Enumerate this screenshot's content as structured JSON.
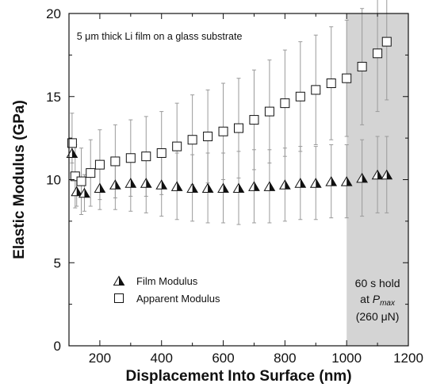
{
  "chart_data": {
    "type": "scatter",
    "xlabel": "Displacement Into Surface (nm)",
    "ylabel": "Elastic Modulus (GPa)",
    "xlim": [
      100,
      1200
    ],
    "ylim": [
      0,
      20
    ],
    "x_ticks": [
      "200",
      "400",
      "600",
      "800",
      "1000",
      "1200"
    ],
    "y_ticks": [
      "0",
      "5",
      "10",
      "15",
      "20"
    ],
    "grid": false,
    "legend_position": "bottom-left",
    "shaded_region": {
      "x_start": 1000,
      "x_end": 1200,
      "color": "#d4d4d4"
    },
    "annotations": {
      "top_note": "5 μm thick Li film on a glass substrate",
      "hold_line1": "60 s hold",
      "hold_line2_prefix": "at ",
      "hold_line2_var": "P",
      "hold_line2_sub": "max",
      "hold_line3": "(260 μN)"
    },
    "series": [
      {
        "name": "Film Modulus",
        "marker": "half-filled-triangle",
        "x": [
          110,
          125,
          150,
          200,
          250,
          300,
          350,
          400,
          450,
          500,
          550,
          600,
          650,
          700,
          750,
          800,
          850,
          900,
          950,
          1000,
          1050,
          1100,
          1130
        ],
        "y": [
          11.6,
          9.3,
          9.2,
          9.5,
          9.7,
          9.8,
          9.8,
          9.7,
          9.6,
          9.5,
          9.5,
          9.5,
          9.5,
          9.6,
          9.6,
          9.7,
          9.8,
          9.8,
          9.9,
          9.9,
          10.1,
          10.3,
          10.3
        ],
        "error": [
          0.6,
          0.9,
          1.1,
          1.3,
          1.5,
          1.7,
          1.8,
          1.9,
          2.0,
          2.0,
          2.1,
          2.1,
          2.2,
          2.2,
          2.2,
          2.2,
          2.2,
          2.2,
          2.2,
          2.2,
          2.3,
          2.3,
          2.3
        ]
      },
      {
        "name": "Apparent Modulus",
        "marker": "open-square",
        "x": [
          110,
          120,
          140,
          170,
          200,
          250,
          300,
          350,
          400,
          450,
          500,
          550,
          600,
          650,
          700,
          750,
          800,
          850,
          900,
          950,
          1000,
          1050,
          1100,
          1130
        ],
        "y": [
          12.2,
          10.2,
          9.9,
          10.4,
          10.9,
          11.1,
          11.3,
          11.4,
          11.6,
          12.0,
          12.4,
          12.6,
          12.9,
          13.1,
          13.6,
          14.1,
          14.6,
          15.0,
          15.4,
          15.8,
          16.1,
          16.8,
          17.6,
          18.3
        ],
        "error": [
          1.8,
          1.9,
          2.0,
          2.0,
          2.1,
          2.2,
          2.3,
          2.4,
          2.5,
          2.6,
          2.7,
          2.8,
          2.9,
          3.0,
          3.0,
          3.1,
          3.2,
          3.3,
          3.3,
          3.4,
          3.5,
          3.5,
          3.5,
          3.5
        ]
      }
    ]
  }
}
